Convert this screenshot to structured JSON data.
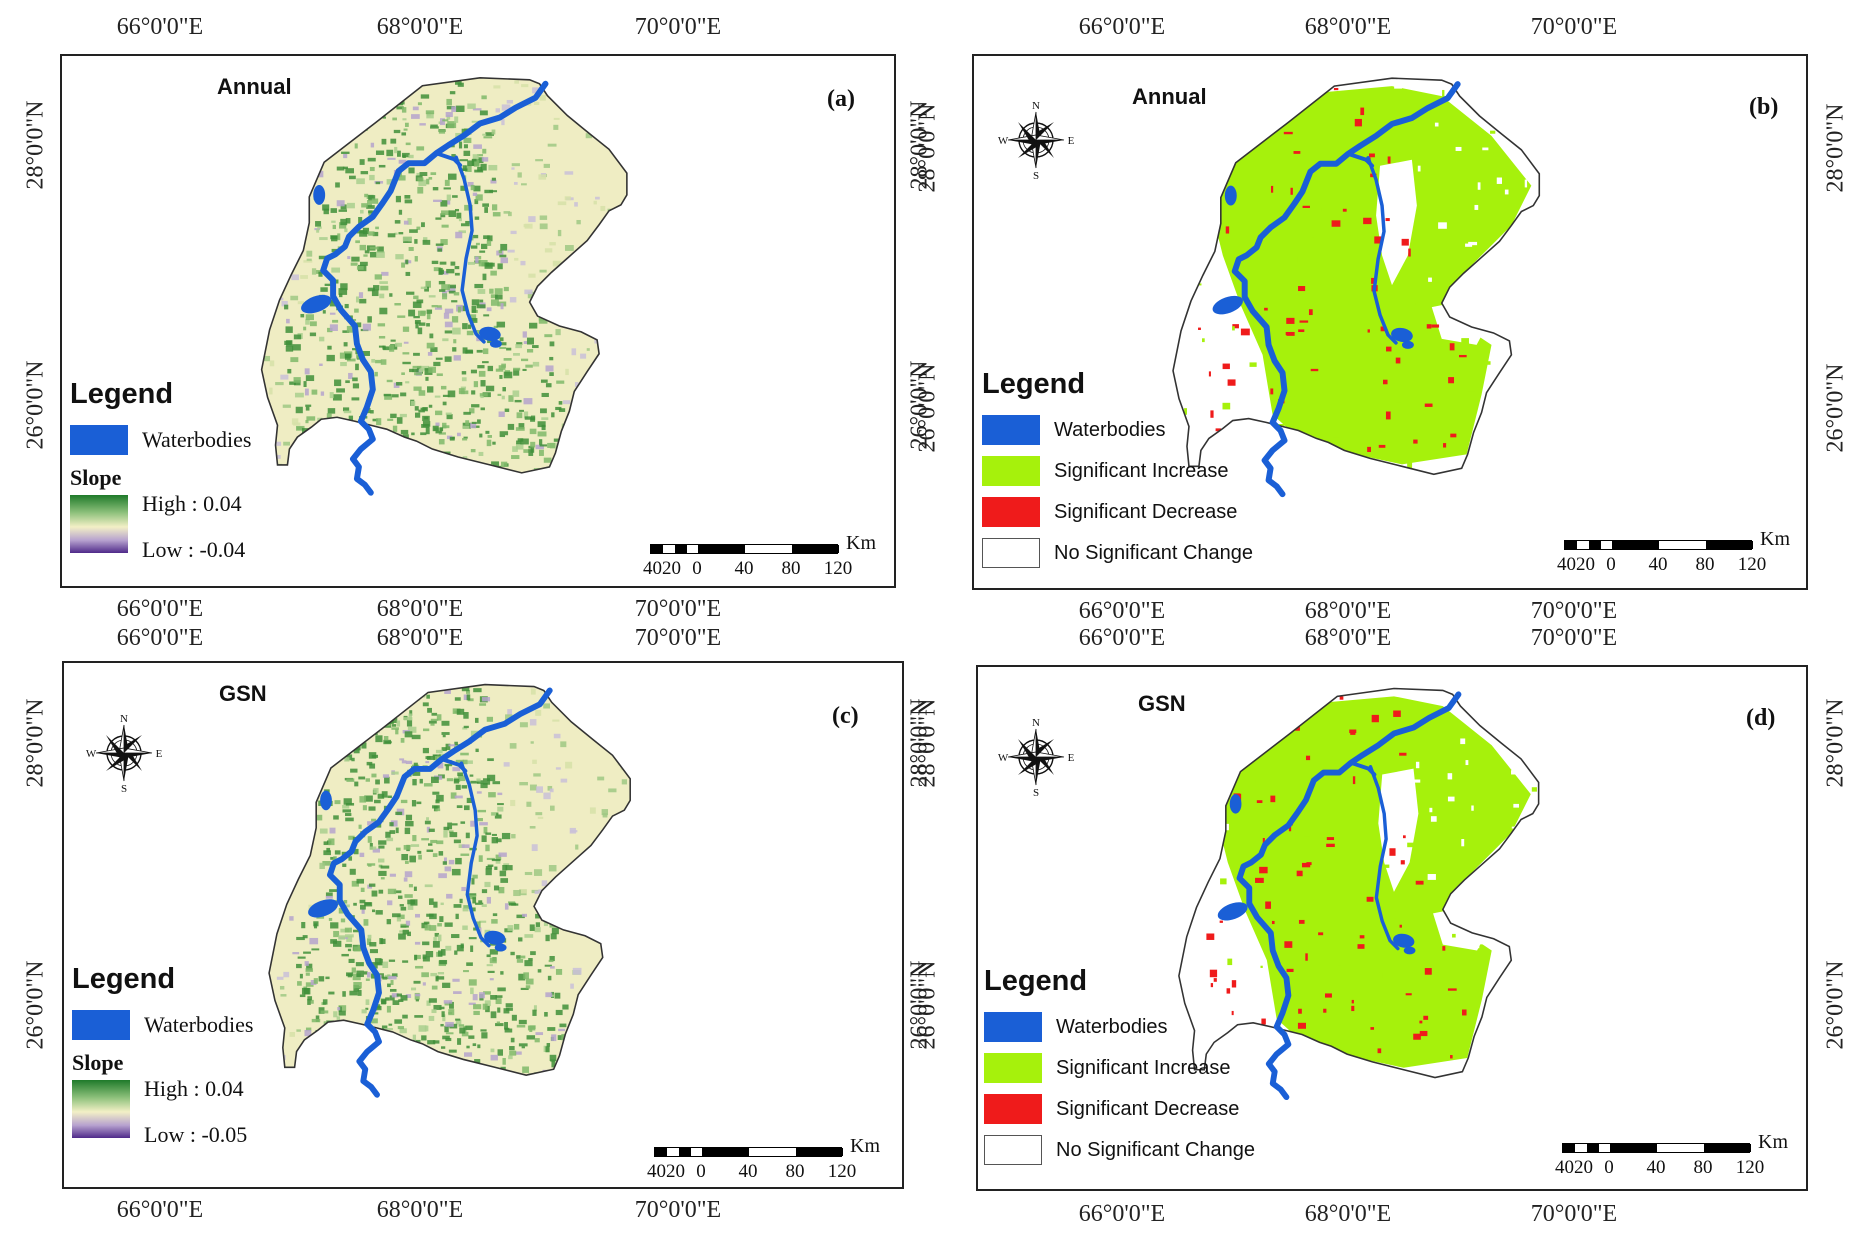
{
  "coords": {
    "lon_labels": [
      "66°0'0\"E",
      "68°0'0\"E",
      "70°0'0\"E"
    ],
    "lat_labels": [
      "28°0'0\"N",
      "26°0'0\"N"
    ]
  },
  "colors": {
    "waterbodies": "#1a5fd6",
    "significant_increase": "#a6f10c",
    "significant_decrease": "#ef1b1b",
    "no_significant_change": "#ffffff",
    "slope_high": "#1f7a2a",
    "slope_mid": "#f3f0c6",
    "slope_low": "#4f2a8a"
  },
  "panels": [
    {
      "id": "a",
      "label": "(a)",
      "title": "Annual",
      "type": "slope",
      "compass": false,
      "legend": {
        "title": "Legend",
        "items": [
          {
            "label": "Waterbodies",
            "color_key": "waterbodies"
          }
        ],
        "slope": {
          "title": "Slope",
          "high": "High : 0.04",
          "low": "Low : -0.04"
        }
      }
    },
    {
      "id": "b",
      "label": "(b)",
      "title": "Annual",
      "type": "significance",
      "compass": true,
      "legend": {
        "title": "Legend",
        "items": [
          {
            "label": "Waterbodies",
            "color_key": "waterbodies"
          },
          {
            "label": "Significant Increase",
            "color_key": "significant_increase"
          },
          {
            "label": "Significant Decrease",
            "color_key": "significant_decrease"
          },
          {
            "label": "No Significant Change",
            "color_key": "no_significant_change"
          }
        ]
      }
    },
    {
      "id": "c",
      "label": "(c)",
      "title": "GSN",
      "type": "slope",
      "compass": true,
      "legend": {
        "title": "Legend",
        "items": [
          {
            "label": "Waterbodies",
            "color_key": "waterbodies"
          }
        ],
        "slope": {
          "title": "Slope",
          "high": "High : 0.04",
          "low": "Low : -0.05"
        }
      }
    },
    {
      "id": "d",
      "label": "(d)",
      "title": "GSN",
      "type": "significance",
      "compass": true,
      "legend": {
        "title": "Legend",
        "items": [
          {
            "label": "Waterbodies",
            "color_key": "waterbodies"
          },
          {
            "label": "Significant Increase",
            "color_key": "significant_increase"
          },
          {
            "label": "Significant Decrease",
            "color_key": "significant_decrease"
          },
          {
            "label": "No Significant Change",
            "color_key": "no_significant_change"
          }
        ]
      }
    }
  ],
  "scalebar": {
    "unit": "Km",
    "ticks": [
      "4020",
      "0",
      "40",
      "80",
      "120"
    ]
  },
  "compass_letters": {
    "n": "N",
    "s": "S",
    "e": "E",
    "w": "W"
  }
}
